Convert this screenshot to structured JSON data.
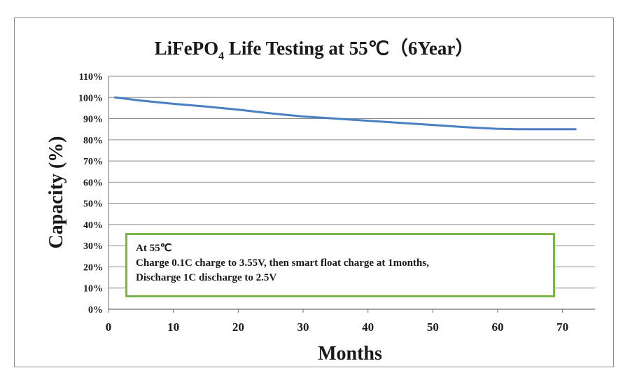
{
  "chart_data": {
    "type": "line",
    "title_main": "LiFePO",
    "title_sub": "4",
    "title_rest": "  Life Testing at 55℃（6Year）",
    "xlabel": "Months",
    "ylabel": "Capacity (%)",
    "xlim": [
      0,
      75
    ],
    "ylim": [
      0,
      110
    ],
    "x_ticks": [
      0,
      10,
      20,
      30,
      40,
      50,
      60,
      70
    ],
    "y_ticks": [
      0,
      10,
      20,
      30,
      40,
      50,
      60,
      70,
      80,
      90,
      100,
      110
    ],
    "y_tick_labels": [
      "0%",
      "10%",
      "20%",
      "30%",
      "40%",
      "50%",
      "60%",
      "70%",
      "80%",
      "90%",
      "100%",
      "110%"
    ],
    "grid": true,
    "series": [
      {
        "color": "#4a7fc1",
        "x": [
          1,
          5,
          10,
          15,
          20,
          25,
          30,
          35,
          40,
          45,
          50,
          55,
          60,
          63,
          66,
          70,
          72
        ],
        "y": [
          100,
          98.5,
          97,
          95.7,
          94.2,
          92.5,
          91,
          90,
          89,
          88,
          87,
          86,
          85.2,
          85,
          85,
          85,
          85
        ]
      }
    ],
    "annotation": [
      "At 55℃",
      "Charge 0.1C charge to 3.55V, then smart float charge at 1months,",
      "Discharge 1C discharge to  2.5V"
    ],
    "annotation_border_color": "#7ab648"
  }
}
